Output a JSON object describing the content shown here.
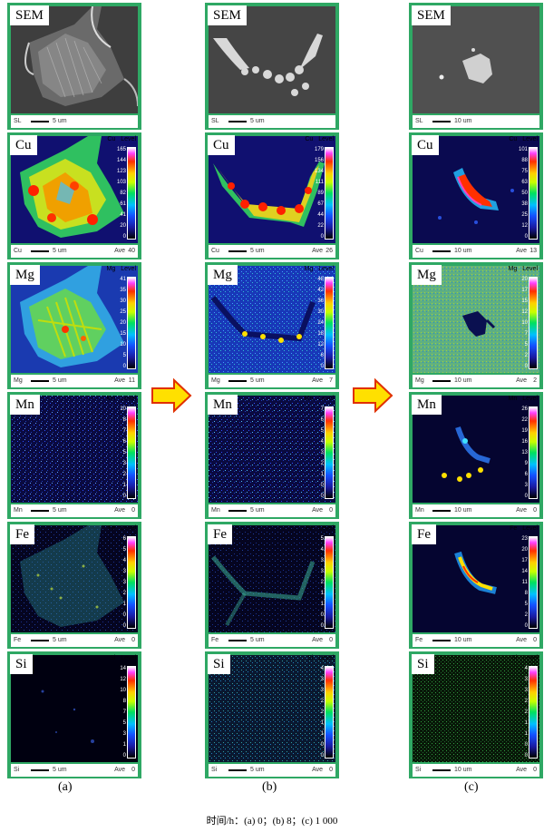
{
  "columns": [
    {
      "label": "(a)",
      "panels": [
        {
          "element": "SEM",
          "footer_label": "SL",
          "scale": "5 um",
          "footer_value": ""
        },
        {
          "element": "Cu",
          "footer_label": "Cu",
          "scale": "5 um",
          "footer_value": "40",
          "header": [
            "Cu",
            "Level"
          ],
          "ticks": [
            "165",
            "144",
            "123",
            "103",
            "82",
            "61",
            "41",
            "20",
            "0"
          ]
        },
        {
          "element": "Mg",
          "footer_label": "Mg",
          "scale": "5 um",
          "footer_value": "11",
          "header": [
            "Mg",
            "Level"
          ],
          "ticks": [
            "41",
            "35",
            "30",
            "25",
            "20",
            "15",
            "10",
            "5",
            "0"
          ]
        },
        {
          "element": "Mn",
          "footer_label": "Mn",
          "scale": "5 um",
          "footer_value": "0",
          "header": [
            "Mn",
            "Level"
          ],
          "ticks": [
            "10",
            "8",
            "7",
            "6",
            "5",
            "3",
            "2",
            "1",
            "0"
          ]
        },
        {
          "element": "Fe",
          "footer_label": "Fe",
          "scale": "5 um",
          "footer_value": "0",
          "header": [
            "Fe",
            "Level"
          ],
          "ticks": [
            "6",
            "5",
            "4",
            "3",
            "3",
            "2",
            "1",
            "0",
            "0"
          ]
        },
        {
          "element": "Si",
          "footer_label": "Si",
          "scale": "5 um",
          "footer_value": "0",
          "header": [
            "Si",
            "Level"
          ],
          "ticks": [
            "14",
            "12",
            "10",
            "8",
            "7",
            "5",
            "3",
            "1",
            "0"
          ]
        }
      ]
    },
    {
      "label": "(b)",
      "panels": [
        {
          "element": "SEM",
          "footer_label": "SL",
          "scale": "5 um",
          "footer_value": ""
        },
        {
          "element": "Cu",
          "footer_label": "Cu",
          "scale": "5 um",
          "footer_value": "26",
          "header": [
            "Cu",
            "Level"
          ],
          "ticks": [
            "179",
            "156",
            "134",
            "111",
            "89",
            "67",
            "44",
            "22",
            "0"
          ]
        },
        {
          "element": "Mg",
          "footer_label": "Mg",
          "scale": "5 um",
          "footer_value": "7",
          "header": [
            "Mg",
            "Level"
          ],
          "ticks": [
            "48",
            "42",
            "36",
            "30",
            "24",
            "18",
            "12",
            "6",
            "0"
          ]
        },
        {
          "element": "Mn",
          "footer_label": "Mn",
          "scale": "5 um",
          "footer_value": "0",
          "header": [
            "Mn",
            "Level"
          ],
          "ticks": [
            "7",
            "6",
            "5",
            "4",
            "3",
            "2",
            "1",
            "0",
            "0"
          ]
        },
        {
          "element": "Fe",
          "footer_label": "Fe",
          "scale": "5 um",
          "footer_value": "0",
          "header": [
            "Fe",
            "Level"
          ],
          "ticks": [
            "5",
            "4",
            "3",
            "3",
            "2",
            "1",
            "1",
            "0",
            "0"
          ]
        },
        {
          "element": "Si",
          "footer_label": "Si",
          "scale": "5 um",
          "footer_value": "0",
          "header": [
            "Si",
            "Level"
          ],
          "ticks": [
            "4",
            "3",
            "3",
            "2",
            "2",
            "1",
            "1",
            "0",
            "0"
          ]
        }
      ]
    },
    {
      "label": "(c)",
      "panels": [
        {
          "element": "SEM",
          "footer_label": "SL",
          "scale": "10 um",
          "footer_value": ""
        },
        {
          "element": "Cu",
          "footer_label": "Cu",
          "scale": "10 um",
          "footer_value": "13",
          "header": [
            "Cu",
            "Level"
          ],
          "ticks": [
            "101",
            "88",
            "75",
            "63",
            "50",
            "38",
            "25",
            "12",
            "0"
          ]
        },
        {
          "element": "Mg",
          "footer_label": "Mg",
          "scale": "10 um",
          "footer_value": "2",
          "header": [
            "Mg",
            "Level"
          ],
          "ticks": [
            "20",
            "17",
            "15",
            "12",
            "10",
            "7",
            "5",
            "2",
            "0"
          ]
        },
        {
          "element": "Mn",
          "footer_label": "Mn",
          "scale": "10 um",
          "footer_value": "0",
          "header": [
            "Mn",
            "Level"
          ],
          "ticks": [
            "26",
            "22",
            "19",
            "16",
            "13",
            "9",
            "6",
            "3",
            "0"
          ]
        },
        {
          "element": "Fe",
          "footer_label": "Fe",
          "scale": "10 um",
          "footer_value": "0",
          "header": [
            "Fe",
            "Level"
          ],
          "ticks": [
            "23",
            "20",
            "17",
            "14",
            "11",
            "8",
            "5",
            "2",
            "0"
          ]
        },
        {
          "element": "Si",
          "footer_label": "Si",
          "scale": "10 um",
          "footer_value": "0",
          "header": [
            "Si",
            "Level"
          ],
          "ticks": [
            "4",
            "3",
            "3",
            "2",
            "2",
            "1",
            "1",
            "0",
            "0"
          ]
        }
      ]
    }
  ],
  "footer_ave": "Ave",
  "caption": "时间/h：(a) 0；(b) 8；(c) 1 000",
  "colors": {
    "panel_frame": "#2fa864",
    "arrow_fill": "#ffe000",
    "arrow_stroke": "#e03000"
  }
}
